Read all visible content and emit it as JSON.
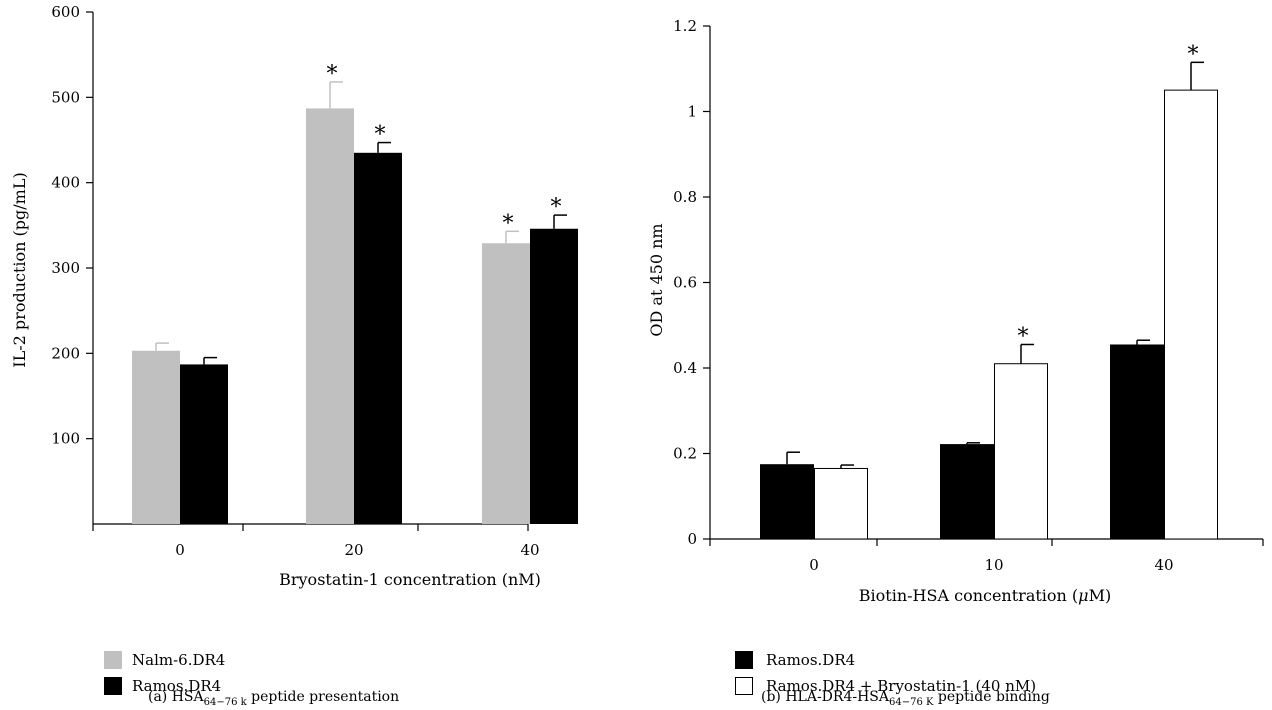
{
  "chart_data": [
    {
      "type": "bar",
      "panel": "(a)",
      "caption_prefix": "(a)  HSA",
      "caption_sub": "64−76 k",
      "caption_suffix": " peptide presentation",
      "xlabel": "Bryostatin-1 concentration (nM)",
      "ylabel": "IL-2 production (pg/mL)",
      "ylim": [
        0,
        600
      ],
      "yticks": [
        100,
        200,
        300,
        400,
        500,
        600
      ],
      "categories": [
        "0",
        "20",
        "40"
      ],
      "series": [
        {
          "name": "Nalm-6.DR4",
          "color": "#c0c0c0",
          "values": [
            203,
            487,
            329
          ],
          "errors": [
            9,
            31,
            14
          ],
          "significant": [
            false,
            true,
            true
          ]
        },
        {
          "name": "Ramos.DR4",
          "color": "#000000",
          "values": [
            187,
            435,
            346
          ],
          "errors": [
            8,
            12,
            16
          ],
          "significant": [
            false,
            true,
            true
          ]
        }
      ],
      "legend_position": "bottom-left"
    },
    {
      "type": "bar",
      "panel": "(b)",
      "caption_prefix": "(b)  HLA-DR4-HSA",
      "caption_sub": "64−76 K",
      "caption_suffix": " peptide binding",
      "xlabel_prefix": "Biotin-HSA concentration (",
      "xlabel_mu": "μ",
      "xlabel_suffix": "M)",
      "ylabel": "OD at 450 nm",
      "ylim": [
        0,
        1.2
      ],
      "yticks": [
        "0",
        "0.2",
        "0.4",
        "0.6",
        "0.8",
        "1",
        "1.2"
      ],
      "categories": [
        "0",
        "10",
        "40"
      ],
      "series": [
        {
          "name": "Ramos.DR4",
          "color": "#000000",
          "values": [
            0.175,
            0.222,
            0.455
          ],
          "errors": [
            0.028,
            0.003,
            0.01
          ],
          "significant": [
            false,
            false,
            false
          ]
        },
        {
          "name": "Ramos.DR4 + Bryostatin-1 (40 nM)",
          "color": "#ffffff",
          "values": [
            0.165,
            0.41,
            1.05
          ],
          "errors": [
            0.008,
            0.045,
            0.065
          ],
          "significant": [
            false,
            true,
            true
          ]
        }
      ],
      "legend_position": "bottom-left"
    }
  ],
  "significance_marker": "*"
}
